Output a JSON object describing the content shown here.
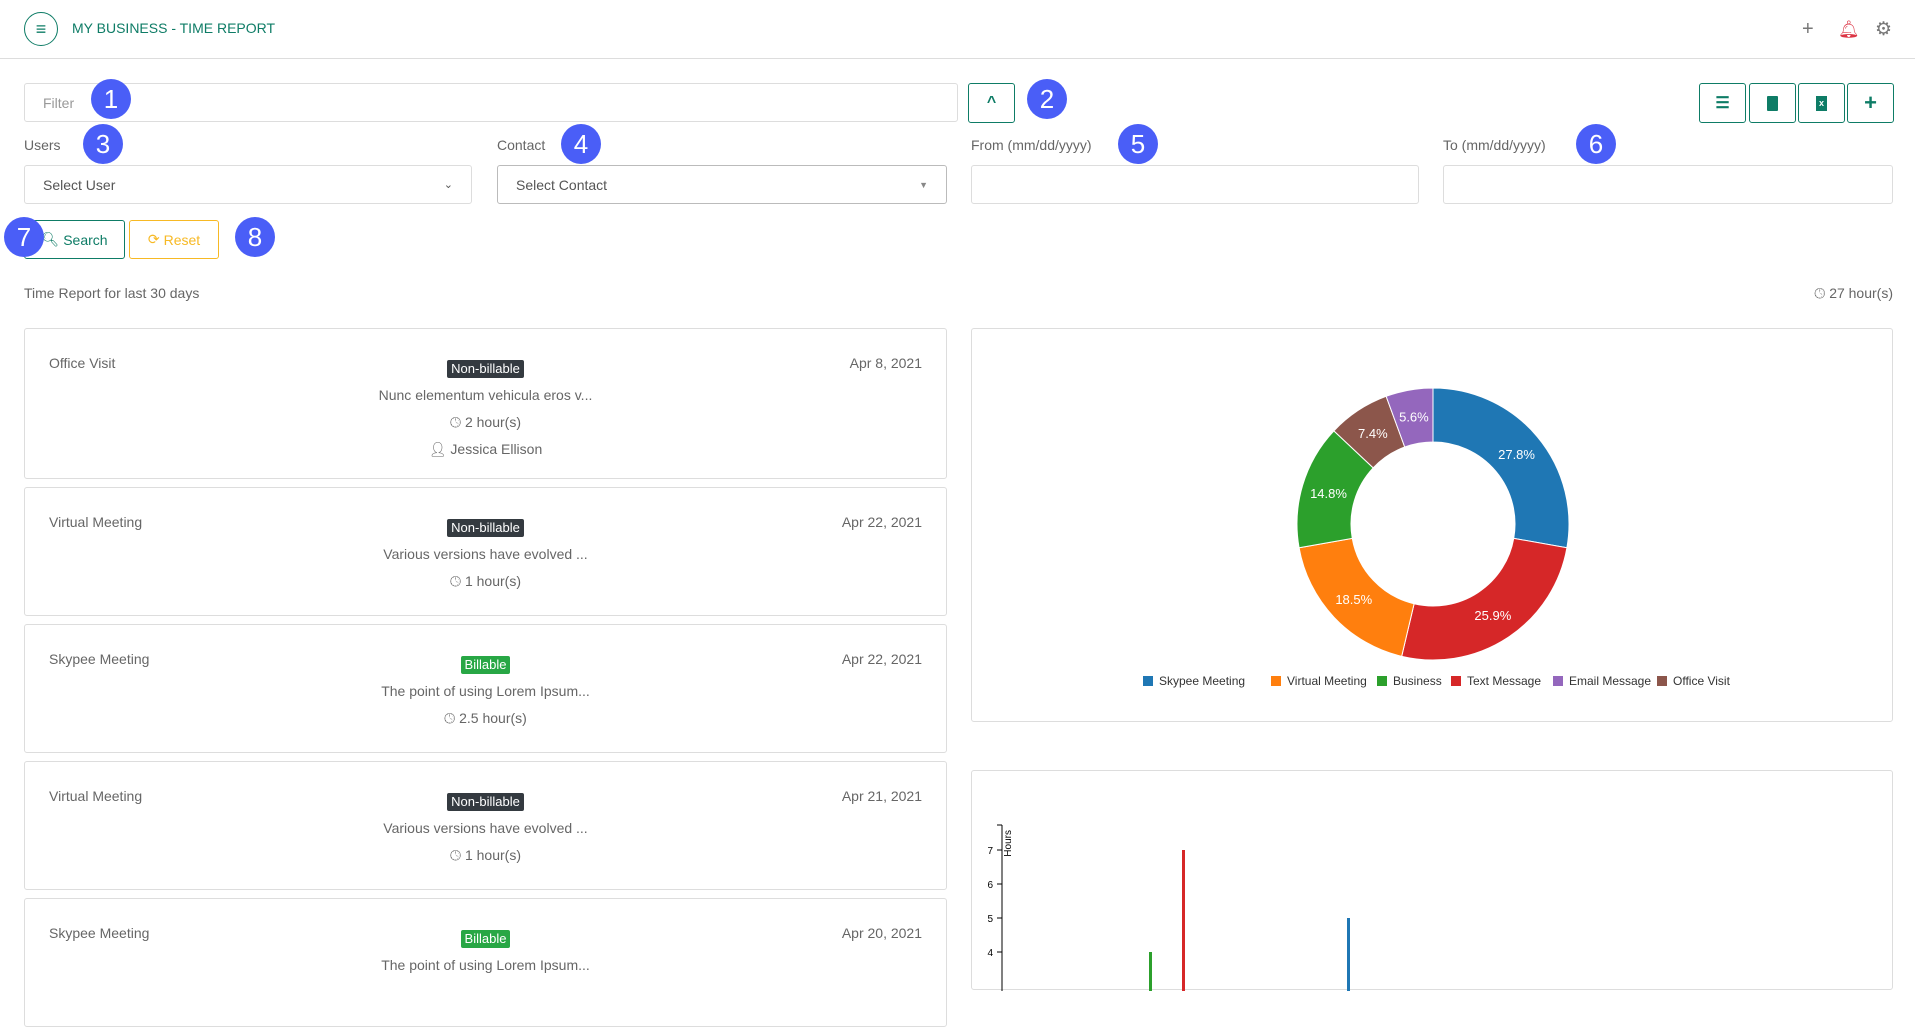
{
  "header": {
    "title": "MY BUSINESS - TIME REPORT",
    "icons": [
      "menu-icon",
      "plus-icon",
      "bell-icon",
      "gear-icon"
    ],
    "bell_color": "#dc3545"
  },
  "filter": {
    "placeholder": "Filter",
    "collapse_icon": "chevron-up-icon"
  },
  "toolbar": {
    "icons": [
      "list-icon",
      "file-pdf-icon",
      "file-excel-icon",
      "plus-icon"
    ]
  },
  "form": {
    "users_label": "Users",
    "users_value": "Select User",
    "contact_label": "Contact",
    "contact_value": "Select Contact",
    "from_label": "From (mm/dd/yyyy)",
    "to_label": "To (mm/dd/yyyy)",
    "search_label": "Search",
    "reset_label": "Reset"
  },
  "annotations": [
    "1",
    "2",
    "3",
    "4",
    "5",
    "6",
    "7",
    "8"
  ],
  "summary": {
    "caption": "Time Report for last 30 days",
    "total": "27 hour(s)"
  },
  "entries": [
    {
      "type": "Office Visit",
      "badge": "Non-billable",
      "billable": false,
      "description": "Nunc elementum vehicula eros v...",
      "hours": "2 hour(s)",
      "user": "Jessica Ellison",
      "date": "Apr 8, 2021"
    },
    {
      "type": "Virtual Meeting",
      "badge": "Non-billable",
      "billable": false,
      "description": "Various versions have evolved ...",
      "hours": "1 hour(s)",
      "date": "Apr 22, 2021"
    },
    {
      "type": "Skypee Meeting",
      "badge": "Billable",
      "billable": true,
      "description": "The point of using Lorem Ipsum...",
      "hours": "2.5 hour(s)",
      "date": "Apr 22, 2021"
    },
    {
      "type": "Virtual Meeting",
      "badge": "Non-billable",
      "billable": false,
      "description": "Various versions have evolved ...",
      "hours": "1 hour(s)",
      "date": "Apr 21, 2021"
    },
    {
      "type": "Skypee Meeting",
      "badge": "Billable",
      "billable": true,
      "description": "The point of using Lorem Ipsum...",
      "date": "Apr 20, 2021"
    }
  ],
  "colors": {
    "accent": "#0e7c66",
    "reset": "#f7b924",
    "nonbillable": "#343a40",
    "billable": "#28a745"
  },
  "chart_data": [
    {
      "type": "pie",
      "donut": true,
      "legend": "bottom",
      "categories": [
        "Skypee Meeting",
        "Virtual Meeting",
        "Business",
        "Text Message",
        "Email Message",
        "Office Visit"
      ],
      "values": [
        27.8,
        18.5,
        14.8,
        25.9,
        5.6,
        7.4
      ],
      "labels": [
        "27.8%",
        "18.5%",
        "14.8%",
        "25.9%",
        "5.6%",
        "7.4%"
      ],
      "colors": [
        "#1f77b4",
        "#ff7f0e",
        "#2ca02c",
        "#d62728",
        "#9467bd",
        "#8c564b"
      ],
      "slice_order": [
        0,
        3,
        1,
        2,
        5,
        4
      ]
    },
    {
      "type": "bar",
      "ylabel": "Hours",
      "yticks": [
        "4",
        "5",
        "6",
        "7"
      ],
      "bars": [
        {
          "value": 4,
          "color": "#2ca02c"
        },
        {
          "value": 7,
          "color": "#d62728"
        },
        {
          "value": 5,
          "color": "#1f77b4"
        }
      ]
    }
  ]
}
